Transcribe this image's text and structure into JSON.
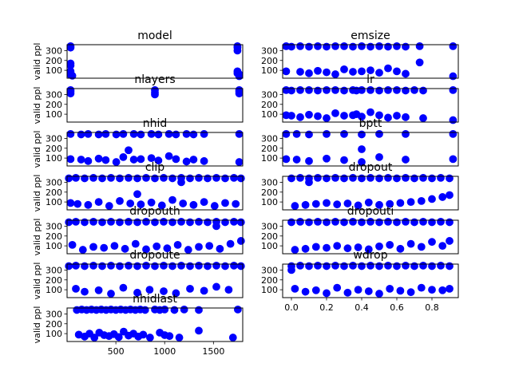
{
  "chart_data": [
    {
      "type": "scatter",
      "title": "model",
      "ylabel": "valid ppl",
      "ylim": [
        20,
        360
      ],
      "yticks": [
        100,
        200,
        300
      ],
      "xlim": [
        0,
        1
      ],
      "xticks": [],
      "x": [
        0.02,
        0.02,
        0.02,
        0.02,
        0.02,
        0.02,
        0.02,
        0.03,
        0.97,
        0.97,
        0.97,
        0.97,
        0.97,
        0.98,
        0.98,
        0.98
      ],
      "y": [
        345,
        330,
        170,
        150,
        90,
        70,
        55,
        45,
        345,
        330,
        300,
        90,
        70,
        60,
        50,
        40
      ]
    },
    {
      "type": "scatter",
      "title": "emsize",
      "ylabel": "",
      "ylim": [
        20,
        360
      ],
      "yticks": [
        100,
        200,
        300
      ],
      "xlim": [
        0,
        1
      ],
      "xticks": [],
      "x": [
        0.02,
        0.05,
        0.1,
        0.15,
        0.2,
        0.25,
        0.3,
        0.35,
        0.4,
        0.45,
        0.5,
        0.55,
        0.6,
        0.65,
        0.7,
        0.78,
        0.97,
        0.02,
        0.1,
        0.15,
        0.2,
        0.25,
        0.3,
        0.35,
        0.4,
        0.45,
        0.5,
        0.55,
        0.6,
        0.65,
        0.7,
        0.78,
        0.97
      ],
      "y": [
        345,
        340,
        345,
        340,
        345,
        340,
        345,
        345,
        340,
        345,
        340,
        345,
        340,
        345,
        340,
        345,
        345,
        90,
        85,
        70,
        95,
        80,
        60,
        110,
        85,
        90,
        100,
        75,
        120,
        90,
        65,
        180,
        40
      ]
    },
    {
      "type": "scatter",
      "title": "nlayers",
      "ylabel": "valid ppl",
      "ylim": [
        20,
        360
      ],
      "yticks": [
        100,
        200,
        300
      ],
      "xlim": [
        0,
        1
      ],
      "xticks": [],
      "x": [
        0.02,
        0.02,
        0.02,
        0.5,
        0.5,
        0.5,
        0.98,
        0.98,
        0.98
      ],
      "y": [
        345,
        330,
        310,
        345,
        320,
        300,
        345,
        330,
        310
      ]
    },
    {
      "type": "scatter",
      "title": "lr",
      "ylabel": "",
      "ylim": [
        20,
        360
      ],
      "yticks": [
        100,
        200,
        300
      ],
      "xlim": [
        0,
        1
      ],
      "xticks": [],
      "x": [
        0.02,
        0.05,
        0.1,
        0.15,
        0.2,
        0.25,
        0.3,
        0.35,
        0.4,
        0.42,
        0.45,
        0.5,
        0.55,
        0.6,
        0.65,
        0.7,
        0.75,
        0.8,
        0.97,
        0.02,
        0.05,
        0.1,
        0.15,
        0.2,
        0.25,
        0.3,
        0.35,
        0.4,
        0.42,
        0.45,
        0.5,
        0.55,
        0.6,
        0.65,
        0.7,
        0.8,
        0.97
      ],
      "y": [
        345,
        340,
        345,
        345,
        340,
        345,
        345,
        340,
        345,
        340,
        345,
        345,
        340,
        345,
        345,
        340,
        345,
        340,
        345,
        90,
        85,
        70,
        95,
        80,
        60,
        110,
        85,
        90,
        100,
        75,
        120,
        90,
        65,
        85,
        70,
        60,
        40
      ]
    },
    {
      "type": "scatter",
      "title": "nhid",
      "ylabel": "valid ppl",
      "ylim": [
        20,
        360
      ],
      "yticks": [
        100,
        200,
        300
      ],
      "xlim": [
        0,
        1
      ],
      "xticks": [],
      "x": [
        0.02,
        0.08,
        0.12,
        0.18,
        0.22,
        0.28,
        0.32,
        0.38,
        0.42,
        0.48,
        0.52,
        0.58,
        0.62,
        0.68,
        0.72,
        0.78,
        0.98,
        0.02,
        0.08,
        0.12,
        0.18,
        0.22,
        0.28,
        0.32,
        0.38,
        0.42,
        0.48,
        0.52,
        0.58,
        0.62,
        0.68,
        0.72,
        0.78,
        0.98,
        0.35
      ],
      "y": [
        345,
        340,
        345,
        340,
        345,
        340,
        345,
        345,
        340,
        345,
        340,
        345,
        340,
        345,
        340,
        345,
        345,
        90,
        85,
        70,
        95,
        80,
        60,
        110,
        85,
        90,
        100,
        75,
        120,
        90,
        65,
        85,
        70,
        60,
        180
      ]
    },
    {
      "type": "scatter",
      "title": "bptt",
      "ylabel": "",
      "ylim": [
        20,
        360
      ],
      "yticks": [
        100,
        200,
        300
      ],
      "xlim": [
        0,
        1
      ],
      "xticks": [],
      "x": [
        0.02,
        0.08,
        0.15,
        0.25,
        0.35,
        0.45,
        0.55,
        0.7,
        0.97,
        0.02,
        0.08,
        0.15,
        0.25,
        0.35,
        0.45,
        0.55,
        0.7,
        0.97,
        0.45
      ],
      "y": [
        345,
        345,
        340,
        345,
        345,
        340,
        345,
        345,
        345,
        90,
        85,
        70,
        95,
        80,
        60,
        110,
        85,
        90,
        190
      ]
    },
    {
      "type": "scatter",
      "title": "clip",
      "ylabel": "valid ppl",
      "ylim": [
        20,
        360
      ],
      "yticks": [
        100,
        200,
        300
      ],
      "xlim": [
        0,
        1
      ],
      "xticks": [],
      "x": [
        0.01,
        0.05,
        0.1,
        0.15,
        0.2,
        0.25,
        0.3,
        0.35,
        0.4,
        0.45,
        0.5,
        0.55,
        0.6,
        0.65,
        0.7,
        0.75,
        0.8,
        0.85,
        0.9,
        0.95,
        0.99,
        0.02,
        0.06,
        0.12,
        0.18,
        0.24,
        0.3,
        0.36,
        0.42,
        0.48,
        0.54,
        0.6,
        0.66,
        0.72,
        0.78,
        0.84,
        0.9,
        0.96,
        0.4,
        0.65
      ],
      "y": [
        340,
        345,
        340,
        345,
        340,
        345,
        340,
        345,
        340,
        345,
        340,
        345,
        340,
        345,
        340,
        345,
        340,
        345,
        340,
        345,
        340,
        90,
        80,
        70,
        100,
        60,
        110,
        85,
        75,
        95,
        65,
        120,
        85,
        70,
        100,
        60,
        90,
        80,
        180,
        300
      ]
    },
    {
      "type": "scatter",
      "title": "dropout",
      "ylabel": "",
      "ylim": [
        20,
        360
      ],
      "yticks": [
        100,
        200,
        300
      ],
      "xlim": [
        -0.05,
        0.95
      ],
      "xticks": [],
      "x": [
        0.0,
        0.05,
        0.1,
        0.15,
        0.2,
        0.25,
        0.3,
        0.35,
        0.4,
        0.45,
        0.5,
        0.55,
        0.6,
        0.65,
        0.7,
        0.75,
        0.8,
        0.85,
        0.9,
        0.02,
        0.08,
        0.14,
        0.2,
        0.26,
        0.32,
        0.38,
        0.44,
        0.5,
        0.56,
        0.62,
        0.68,
        0.74,
        0.8,
        0.86,
        0.9,
        0.1
      ],
      "y": [
        340,
        345,
        340,
        345,
        340,
        345,
        340,
        345,
        340,
        345,
        340,
        345,
        340,
        345,
        340,
        345,
        340,
        345,
        340,
        60,
        70,
        80,
        90,
        75,
        85,
        65,
        95,
        70,
        80,
        90,
        100,
        110,
        130,
        150,
        170,
        300
      ]
    },
    {
      "type": "scatter",
      "title": "dropouth",
      "ylabel": "valid ppl",
      "ylim": [
        20,
        360
      ],
      "yticks": [
        100,
        200,
        300
      ],
      "xlim": [
        0,
        1
      ],
      "xticks": [],
      "x": [
        0.01,
        0.05,
        0.1,
        0.15,
        0.2,
        0.25,
        0.3,
        0.35,
        0.4,
        0.45,
        0.5,
        0.55,
        0.6,
        0.65,
        0.7,
        0.75,
        0.8,
        0.85,
        0.9,
        0.95,
        0.99,
        0.03,
        0.09,
        0.15,
        0.21,
        0.27,
        0.33,
        0.39,
        0.45,
        0.51,
        0.57,
        0.63,
        0.69,
        0.75,
        0.81,
        0.87,
        0.93,
        0.99,
        0.85
      ],
      "y": [
        340,
        345,
        340,
        345,
        340,
        345,
        340,
        345,
        340,
        345,
        340,
        345,
        340,
        345,
        340,
        345,
        340,
        345,
        340,
        345,
        340,
        110,
        60,
        90,
        80,
        100,
        70,
        120,
        65,
        95,
        75,
        110,
        60,
        90,
        100,
        70,
        120,
        150,
        300
      ]
    },
    {
      "type": "scatter",
      "title": "dropouti",
      "ylabel": "",
      "ylim": [
        20,
        360
      ],
      "yticks": [
        100,
        200,
        300
      ],
      "xlim": [
        -0.05,
        0.95
      ],
      "xticks": [],
      "x": [
        0.0,
        0.05,
        0.1,
        0.15,
        0.2,
        0.25,
        0.3,
        0.35,
        0.4,
        0.45,
        0.5,
        0.55,
        0.6,
        0.65,
        0.7,
        0.75,
        0.8,
        0.85,
        0.9,
        0.02,
        0.08,
        0.14,
        0.2,
        0.26,
        0.32,
        0.38,
        0.44,
        0.5,
        0.56,
        0.62,
        0.68,
        0.74,
        0.8,
        0.86,
        0.9
      ],
      "y": [
        340,
        345,
        340,
        345,
        340,
        345,
        340,
        345,
        340,
        345,
        340,
        345,
        340,
        345,
        340,
        345,
        340,
        345,
        340,
        60,
        70,
        90,
        80,
        100,
        75,
        85,
        65,
        95,
        110,
        70,
        120,
        90,
        140,
        100,
        150
      ]
    },
    {
      "type": "scatter",
      "title": "dropoute",
      "ylabel": "valid ppl",
      "ylim": [
        20,
        360
      ],
      "yticks": [
        100,
        200,
        300
      ],
      "xlim": [
        0,
        1
      ],
      "xticks": [],
      "x": [
        0.01,
        0.05,
        0.1,
        0.15,
        0.2,
        0.25,
        0.3,
        0.35,
        0.4,
        0.45,
        0.5,
        0.55,
        0.6,
        0.65,
        0.7,
        0.75,
        0.8,
        0.85,
        0.9,
        0.95,
        0.99,
        0.05,
        0.1,
        0.18,
        0.25,
        0.32,
        0.4,
        0.47,
        0.55,
        0.62,
        0.7,
        0.78,
        0.85,
        0.92
      ],
      "y": [
        340,
        345,
        340,
        345,
        340,
        345,
        340,
        345,
        340,
        345,
        340,
        345,
        340,
        345,
        340,
        345,
        340,
        345,
        340,
        345,
        340,
        110,
        80,
        95,
        60,
        120,
        70,
        100,
        85,
        65,
        110,
        90,
        130,
        100
      ]
    },
    {
      "type": "scatter",
      "title": "wdrop",
      "ylabel": "",
      "ylim": [
        20,
        360
      ],
      "yticks": [
        100,
        200,
        300
      ],
      "xlim": [
        -0.05,
        0.95
      ],
      "xticks": [
        0.0,
        0.2,
        0.4,
        0.6,
        0.8
      ],
      "xticklabels": [
        "0.0",
        "0.2",
        "0.4",
        "0.6",
        "0.8"
      ],
      "x": [
        0.0,
        0.05,
        0.1,
        0.15,
        0.2,
        0.25,
        0.3,
        0.35,
        0.4,
        0.45,
        0.5,
        0.55,
        0.6,
        0.65,
        0.7,
        0.75,
        0.8,
        0.85,
        0.9,
        0.02,
        0.08,
        0.14,
        0.2,
        0.26,
        0.32,
        0.38,
        0.44,
        0.5,
        0.56,
        0.62,
        0.68,
        0.74,
        0.8,
        0.86,
        0.9,
        0.0
      ],
      "y": [
        340,
        345,
        340,
        345,
        340,
        345,
        340,
        345,
        340,
        345,
        340,
        345,
        340,
        345,
        340,
        345,
        340,
        345,
        340,
        110,
        80,
        95,
        65,
        120,
        70,
        100,
        85,
        60,
        110,
        90,
        75,
        120,
        100,
        95,
        110,
        300
      ]
    },
    {
      "type": "scatter",
      "title": "nhidlast",
      "ylabel": "valid ppl",
      "ylim": [
        20,
        360
      ],
      "yticks": [
        100,
        200,
        300
      ],
      "xlim": [
        0,
        1800
      ],
      "xticks": [
        500,
        1000,
        1500
      ],
      "xticklabels": [
        "500",
        "1000",
        "1500"
      ],
      "x": [
        100,
        150,
        200,
        250,
        300,
        350,
        400,
        450,
        500,
        550,
        600,
        650,
        700,
        750,
        800,
        900,
        950,
        1000,
        1100,
        1200,
        1350,
        1750,
        120,
        180,
        230,
        280,
        330,
        380,
        430,
        480,
        530,
        580,
        630,
        680,
        730,
        780,
        850,
        950,
        1000,
        1050,
        1150,
        1350,
        1700
      ],
      "y": [
        340,
        345,
        340,
        345,
        340,
        345,
        340,
        345,
        340,
        345,
        340,
        345,
        340,
        345,
        340,
        345,
        340,
        345,
        340,
        345,
        340,
        345,
        90,
        70,
        100,
        60,
        110,
        85,
        75,
        95,
        65,
        120,
        80,
        100,
        70,
        90,
        60,
        110,
        85,
        75,
        60,
        130,
        60
      ]
    }
  ]
}
